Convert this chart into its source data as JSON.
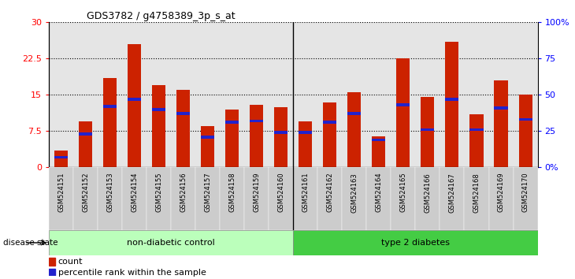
{
  "title": "GDS3782 / g4758389_3p_s_at",
  "samples": [
    "GSM524151",
    "GSM524152",
    "GSM524153",
    "GSM524154",
    "GSM524155",
    "GSM524156",
    "GSM524157",
    "GSM524158",
    "GSM524159",
    "GSM524160",
    "GSM524161",
    "GSM524162",
    "GSM524163",
    "GSM524164",
    "GSM524165",
    "GSM524166",
    "GSM524167",
    "GSM524168",
    "GSM524169",
    "GSM524170"
  ],
  "counts": [
    3.5,
    9.5,
    18.5,
    25.5,
    17.0,
    16.0,
    8.5,
    12.0,
    13.0,
    12.5,
    9.5,
    13.5,
    15.5,
    6.5,
    22.5,
    14.5,
    26.0,
    11.0,
    18.0,
    15.0
  ],
  "percentiles": [
    7,
    23,
    42,
    47,
    40,
    37,
    21,
    31,
    32,
    24,
    24,
    31,
    37,
    19,
    43,
    26,
    47,
    26,
    41,
    33
  ],
  "non_diabetic_count": 10,
  "type2_count": 10,
  "ylim_left": [
    0,
    30
  ],
  "ylim_right": [
    0,
    100
  ],
  "yticks_left": [
    0,
    7.5,
    15,
    22.5,
    30
  ],
  "yticks_right": [
    0,
    25,
    50,
    75,
    100
  ],
  "ytick_labels_left": [
    "0",
    "7.5",
    "15",
    "22.5",
    "30"
  ],
  "ytick_labels_right": [
    "0%",
    "25",
    "50",
    "75",
    "100%"
  ],
  "bar_color": "#cc2200",
  "percentile_color": "#2222cc",
  "non_diabetic_color": "#bbffbb",
  "type2_color": "#44cc44",
  "col_bg_color": "#cccccc",
  "bar_width": 0.55
}
